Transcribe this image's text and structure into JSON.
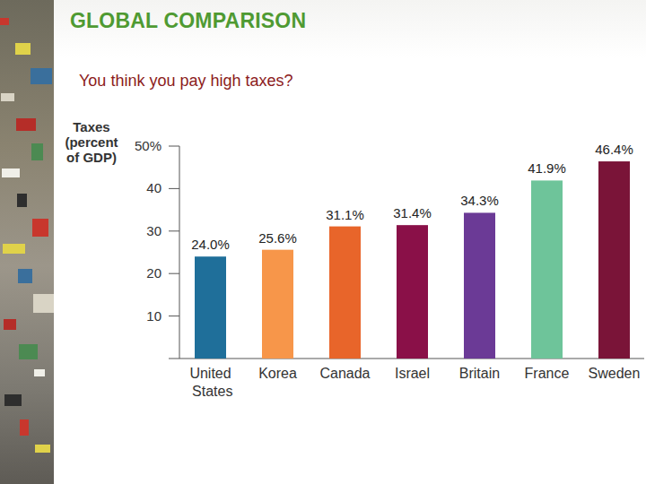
{
  "chart_data": {
    "type": "bar",
    "title": "GLOBAL COMPARISON",
    "subtitle": "You think you pay high taxes?",
    "y_label": "Taxes (percent of GDP)",
    "categories": [
      "United States",
      "Korea",
      "Canada",
      "Israel",
      "Britain",
      "France",
      "Sweden"
    ],
    "values": [
      24.0,
      25.6,
      31.1,
      31.4,
      34.3,
      41.9,
      46.4
    ],
    "value_labels": [
      "24.0%",
      "25.6%",
      "31.1%",
      "31.4%",
      "34.3%",
      "41.9%",
      "46.4%"
    ],
    "colors": [
      "#1f6f9a",
      "#f7964a",
      "#e8652a",
      "#8a1048",
      "#6b3a96",
      "#6ec49a",
      "#7a1438"
    ],
    "ylim": [
      0,
      50
    ],
    "yticks": [
      10,
      20,
      30,
      40,
      {
        "value": 50,
        "label": "50%"
      }
    ],
    "grid": false,
    "data_labels": true
  }
}
